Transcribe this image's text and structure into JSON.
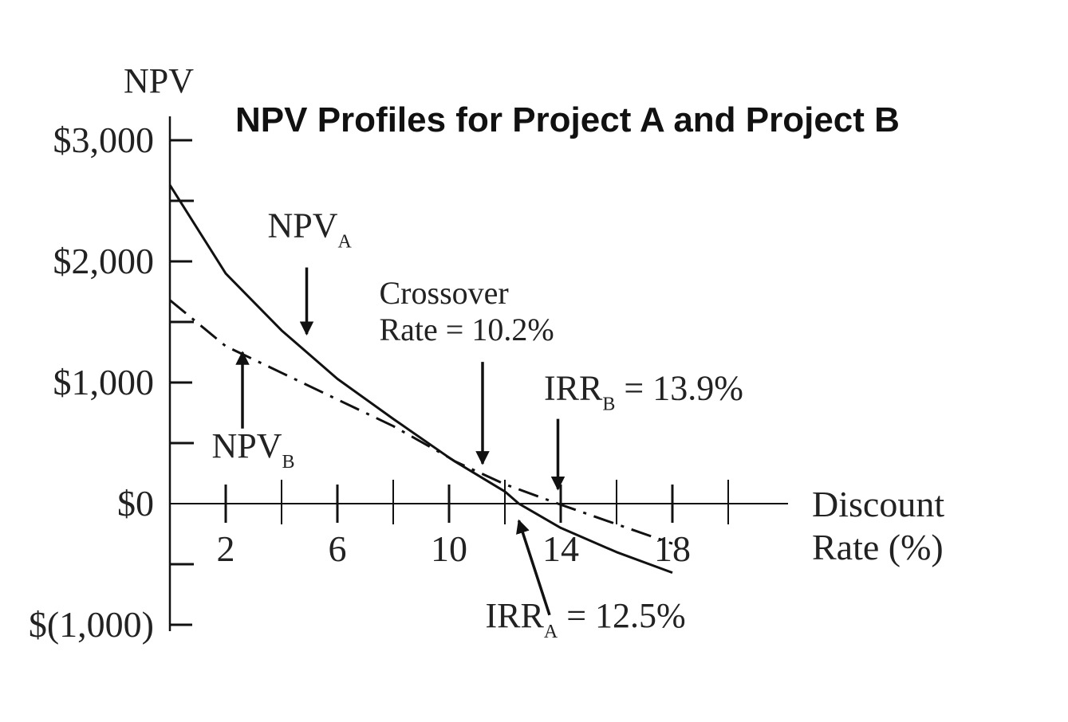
{
  "chart_data": {
    "type": "line",
    "title": "NPV Profiles for Project A and Project B",
    "ylabel": "NPV",
    "xlabel_lines": [
      "Discount",
      "Rate (%)"
    ],
    "xlim": [
      0,
      20
    ],
    "ylim": [
      -1000,
      3000
    ],
    "y_tick_labels": [
      {
        "value": 3000,
        "label": "$3,000"
      },
      {
        "value": 2000,
        "label": "$2,000"
      },
      {
        "value": 1000,
        "label": "$1,000"
      },
      {
        "value": 0,
        "label": "$0"
      },
      {
        "value": -1000,
        "label": "$(1,000)"
      }
    ],
    "y_minor_ticks": [
      2500,
      1500,
      500,
      -500
    ],
    "x_tick_labels": [
      {
        "value": 2,
        "label": "2"
      },
      {
        "value": 6,
        "label": "6"
      },
      {
        "value": 10,
        "label": "10"
      },
      {
        "value": 14,
        "label": "14"
      },
      {
        "value": 18,
        "label": "18"
      }
    ],
    "x_minor_ticks": [
      4,
      8,
      12,
      16,
      20
    ],
    "grid": false,
    "series": [
      {
        "key": "A",
        "style": "solid",
        "x": [
          0,
          2,
          4,
          6,
          8,
          10,
          10.2,
          12,
          12.5,
          14,
          16,
          18
        ],
        "values": [
          2630,
          1900,
          1430,
          1030,
          700,
          380,
          350,
          100,
          0,
          -200,
          -400,
          -570
        ]
      },
      {
        "key": "B",
        "style": "dash-dot",
        "x": [
          0,
          2,
          4,
          6,
          8,
          10,
          10.2,
          12,
          13.9,
          16,
          18
        ],
        "values": [
          1680,
          1300,
          1080,
          860,
          640,
          380,
          350,
          160,
          0,
          -170,
          -330
        ]
      }
    ],
    "annotations": [
      {
        "key": "npv-a-label",
        "text": "NPV",
        "sub": "A",
        "x": 3.5,
        "y": 2200,
        "arrow_from": [
          4.9,
          1950
        ],
        "arrow_to": [
          4.9,
          1400
        ]
      },
      {
        "key": "npv-b-label",
        "text": "NPV",
        "sub": "B",
        "x": 1.5,
        "y": 380,
        "arrow_from": [
          2.6,
          620
        ],
        "arrow_to": [
          2.6,
          1250
        ]
      },
      {
        "key": "crossover-label",
        "lines": [
          "Crossover",
          "Rate = 10.2%"
        ],
        "x": 7.5,
        "y": 1650,
        "arrow_from": [
          11.2,
          1170
        ],
        "arrow_to": [
          11.2,
          330
        ]
      },
      {
        "key": "irr-b-label",
        "text": "IRR",
        "sub": "B",
        "suffix": " = 13.9%",
        "x": 13.4,
        "y": 860,
        "arrow_from": [
          13.9,
          700
        ],
        "arrow_to": [
          13.9,
          120
        ]
      },
      {
        "key": "irr-a-label",
        "text": "IRR",
        "sub": "A",
        "suffix": " = 12.5%",
        "x": 11.3,
        "y": -1020,
        "arrow_from": [
          13.6,
          -920
        ],
        "arrow_to": [
          12.5,
          -140
        ]
      }
    ]
  }
}
